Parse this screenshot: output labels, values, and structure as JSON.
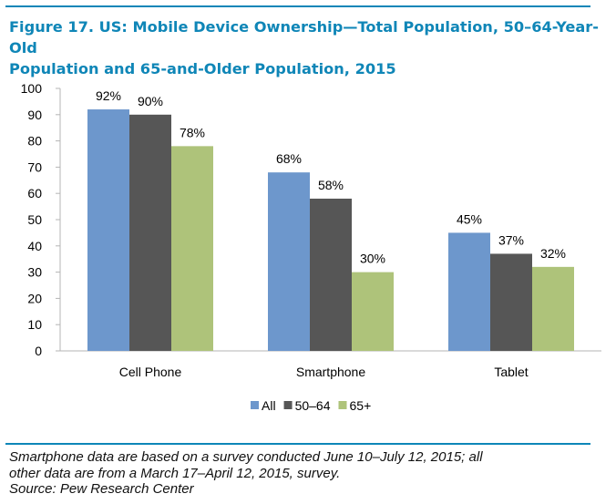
{
  "title_line1": "Figure 17. US: Mobile Device Ownership—Total Population, 50–64-Year-Old",
  "title_line2": "Population and 65-and-Older Population, 2015",
  "footnote_line1": "Smartphone data are based on a survey conducted June 10–July 12, 2015; all",
  "footnote_line2": "other data are from a March 17–April 12, 2015, survey.",
  "source": "Source: Pew Research Center",
  "chart_data": {
    "type": "bar",
    "categories": [
      "Cell Phone",
      "Smartphone",
      "Tablet"
    ],
    "series": [
      {
        "name": "All",
        "values": [
          92,
          68,
          45
        ],
        "labels": [
          "92%",
          "68%",
          "45%"
        ],
        "color": "#6d97cc"
      },
      {
        "name": "50–64",
        "values": [
          90,
          58,
          37
        ],
        "labels": [
          "90%",
          "58%",
          "37%"
        ],
        "color": "#565656"
      },
      {
        "name": "65+",
        "values": [
          78,
          30,
          32
        ],
        "labels": [
          "78%",
          "30%",
          "32%"
        ],
        "color": "#aec37a"
      }
    ],
    "ylim": [
      0,
      100
    ],
    "yticks": [
      0,
      10,
      20,
      30,
      40,
      50,
      60,
      70,
      80,
      90,
      100
    ],
    "grid": false,
    "legend": "bottom"
  }
}
